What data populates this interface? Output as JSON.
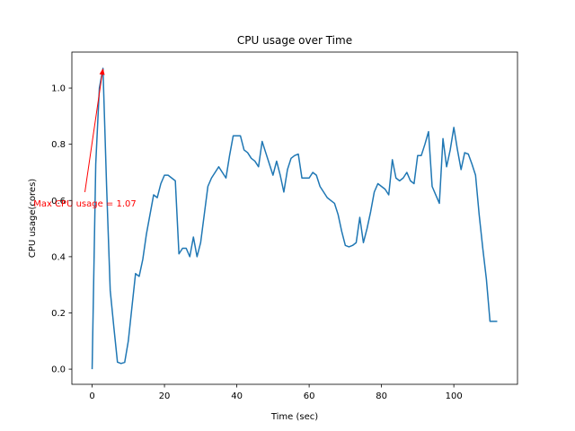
{
  "chart_data": {
    "type": "line",
    "title": "CPU usage over Time",
    "xlabel": "Time (sec)",
    "ylabel": "CPU usage(cores)",
    "xlim": [
      -5.6,
      117.6
    ],
    "ylim": [
      -0.054,
      1.128
    ],
    "xticks": [
      0,
      20,
      40,
      60,
      80,
      100
    ],
    "xtick_labels": [
      "0",
      "20",
      "40",
      "60",
      "80",
      "100"
    ],
    "yticks": [
      0.0,
      0.2,
      0.4,
      0.6,
      0.8,
      1.0
    ],
    "ytick_labels": [
      "0.0",
      "0.2",
      "0.4",
      "0.6",
      "0.8",
      "1.0"
    ],
    "grid": false,
    "series": [
      {
        "color": "#1f77b4",
        "x": [
          0,
          1,
          2,
          3,
          4,
          5,
          6,
          7,
          8,
          9,
          10,
          11,
          12,
          13,
          14,
          15,
          16,
          17,
          18,
          19,
          20,
          21,
          22,
          23,
          24,
          25,
          26,
          27,
          28,
          29,
          30,
          31,
          32,
          33,
          34,
          35,
          36,
          37,
          38,
          39,
          40,
          41,
          42,
          43,
          44,
          45,
          46,
          47,
          48,
          49,
          50,
          51,
          52,
          53,
          54,
          55,
          56,
          57,
          58,
          59,
          60,
          61,
          62,
          63,
          64,
          65,
          66,
          67,
          68,
          69,
          70,
          71,
          72,
          73,
          74,
          75,
          76,
          77,
          78,
          79,
          80,
          81,
          82,
          83,
          84,
          85,
          86,
          87,
          88,
          89,
          90,
          91,
          92,
          93,
          94,
          95,
          96,
          97,
          98,
          99,
          100,
          101,
          102,
          103,
          104,
          105,
          106,
          107,
          108,
          109,
          110,
          111,
          112
        ],
        "y": [
          0.0,
          0.73,
          1.0,
          1.07,
          0.65,
          0.28,
          0.15,
          0.025,
          0.02,
          0.024,
          0.1,
          0.22,
          0.34,
          0.33,
          0.39,
          0.48,
          0.55,
          0.62,
          0.61,
          0.66,
          0.69,
          0.69,
          0.68,
          0.67,
          0.41,
          0.43,
          0.43,
          0.4,
          0.47,
          0.4,
          0.45,
          0.55,
          0.65,
          0.68,
          0.7,
          0.72,
          0.7,
          0.68,
          0.76,
          0.83,
          0.83,
          0.83,
          0.78,
          0.77,
          0.75,
          0.74,
          0.72,
          0.81,
          0.77,
          0.73,
          0.69,
          0.74,
          0.69,
          0.63,
          0.71,
          0.75,
          0.76,
          0.765,
          0.68,
          0.68,
          0.68,
          0.7,
          0.69,
          0.65,
          0.63,
          0.61,
          0.6,
          0.59,
          0.55,
          0.49,
          0.44,
          0.435,
          0.44,
          0.45,
          0.54,
          0.45,
          0.5,
          0.56,
          0.63,
          0.66,
          0.65,
          0.64,
          0.62,
          0.745,
          0.68,
          0.67,
          0.68,
          0.7,
          0.67,
          0.66,
          0.76,
          0.76,
          0.8,
          0.845,
          0.65,
          0.62,
          0.59,
          0.82,
          0.72,
          0.78,
          0.86,
          0.78,
          0.71,
          0.77,
          0.765,
          0.73,
          0.69,
          0.55,
          0.43,
          0.32,
          0.17,
          0.17,
          0.17
        ]
      }
    ],
    "annotation": {
      "text": "Max CPU usage = 1.07",
      "color": "#ff0000",
      "point": [
        3,
        1.07
      ],
      "text_anchor_point": [
        -2,
        0.63
      ]
    }
  }
}
